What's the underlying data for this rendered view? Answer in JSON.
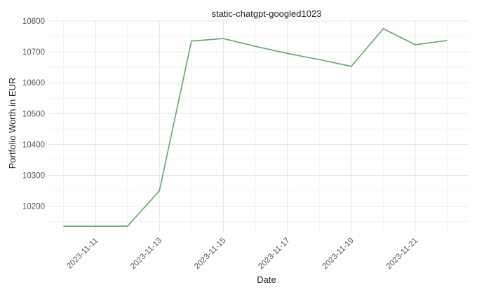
{
  "chart_data": {
    "type": "line",
    "title": "static-chatgpt-googled1023",
    "xlabel": "Date",
    "ylabel": "Portfolio Worth in EUR",
    "x": [
      "2023-11-10",
      "2023-11-11",
      "2023-11-12",
      "2023-11-13",
      "2023-11-14",
      "2023-11-15",
      "2023-11-16",
      "2023-11-17",
      "2023-11-18",
      "2023-11-19",
      "2023-11-20",
      "2023-11-21",
      "2023-11-22"
    ],
    "series": [
      {
        "values": [
          10135,
          10135,
          10135,
          10250,
          10735,
          10743,
          10718,
          10695,
          10675,
          10653,
          10775,
          10723,
          10737
        ]
      }
    ],
    "xlim": [
      "2023-11-09T13:12",
      "2023-11-22T16:00"
    ],
    "ylim": [
      10115,
      10800
    ],
    "x_ticks": [
      "2023-11-11",
      "2023-11-13",
      "2023-11-15",
      "2023-11-17",
      "2023-11-19",
      "2023-11-21"
    ],
    "y_ticks": [
      10200,
      10300,
      10400,
      10500,
      10600,
      10700,
      10800
    ],
    "line_color": "#5fa86a",
    "grid": true
  }
}
